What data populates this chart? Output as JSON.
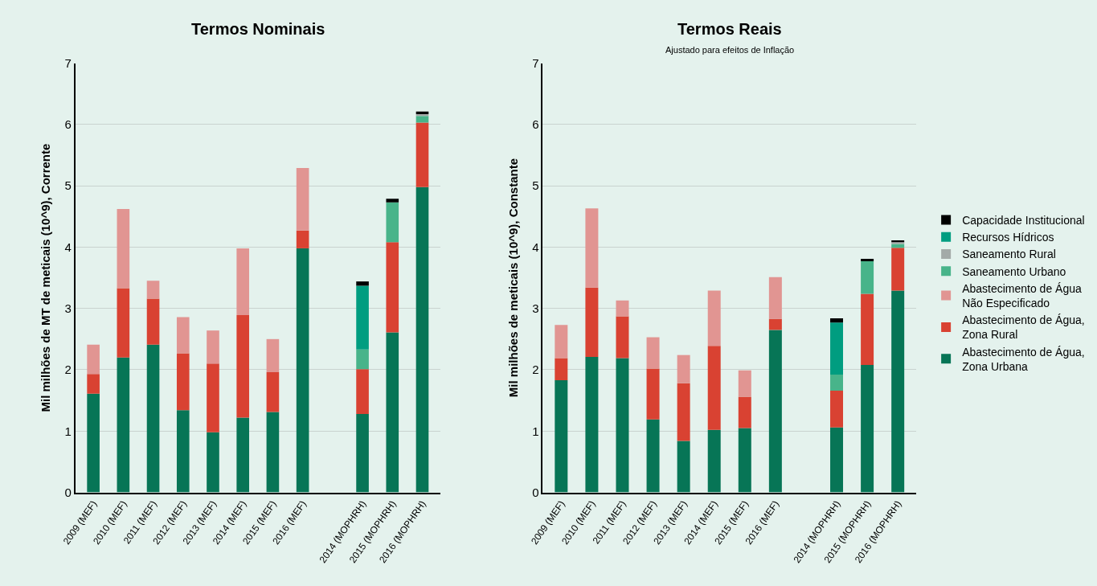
{
  "chart_data": [
    {
      "type": "bar",
      "stacked": true,
      "title": "Termos Nominais",
      "ylabel": "Mil milhões de MT de meticais (10^9), Corrente",
      "categories": [
        "2009 (MEF)",
        "2010 (MEF)",
        "2011 (MEF)",
        "2012 (MEF)",
        "2013 (MEF)",
        "2014 (MEF)",
        "2015 (MEF)",
        "2016 (MEF)",
        null,
        "2014 (MOPHRH)",
        "2015 (MOPHRH)",
        "2016 (MOPHRH)"
      ],
      "series": [
        {
          "name": "Abastecimento de Água,\nZona Urbana",
          "color": "#077556",
          "values": [
            1.61,
            2.2,
            2.41,
            1.34,
            0.98,
            1.22,
            1.31,
            3.98,
            null,
            1.28,
            2.61,
            4.98
          ]
        },
        {
          "name": "Abastecimento de Água,\nZona Rural",
          "color": "#d94232",
          "values": [
            0.32,
            1.13,
            0.75,
            0.93,
            1.12,
            1.67,
            0.65,
            0.29,
            null,
            0.73,
            1.47,
            1.05
          ]
        },
        {
          "name": "Abastecimento de Água\nNão Especificado",
          "color": "#e19592",
          "values": [
            0.48,
            1.29,
            0.29,
            0.59,
            0.54,
            1.09,
            0.54,
            1.02,
            null,
            null,
            null,
            null
          ]
        },
        {
          "name": "Saneamento Urbano",
          "color": "#48b48a",
          "values": [
            null,
            null,
            null,
            null,
            null,
            null,
            null,
            null,
            null,
            0.32,
            0.65,
            0.11
          ]
        },
        {
          "name": "Saneamento Rural",
          "color": "#a3aaa8",
          "values": [
            null,
            null,
            null,
            null,
            null,
            null,
            null,
            null,
            null,
            null,
            null,
            0.03
          ]
        },
        {
          "name": "Recursos Hídricos",
          "color": "#009d80",
          "values": [
            null,
            null,
            null,
            null,
            null,
            null,
            null,
            null,
            null,
            1.04,
            null,
            null
          ]
        },
        {
          "name": "Capacidade Institucional",
          "color": "#000000",
          "values": [
            null,
            null,
            null,
            null,
            null,
            null,
            null,
            null,
            null,
            0.07,
            0.06,
            0.04
          ]
        }
      ],
      "ylim": [
        0,
        7
      ],
      "yticks": [
        0,
        1,
        2,
        3,
        4,
        5,
        6,
        7
      ],
      "grid": "y",
      "legend": "right"
    },
    {
      "type": "bar",
      "stacked": true,
      "title": "Termos Reais",
      "subtitle": "Ajustado para efeitos de Inflação",
      "ylabel": "Mil milhões de meticais (10^9), Constante",
      "categories": [
        "2009 (MEF)",
        "2010 (MEF)",
        "2011 (MEF)",
        "2012 (MEF)",
        "2013 (MEF)",
        "2014 (MEF)",
        "2015 (MEF)",
        "2016 (MEF)",
        null,
        "2014 (MOPHRH)",
        "2015 (MOPHRH)",
        "2016 (MOPHRH)"
      ],
      "series": [
        {
          "name": "Abastecimento de Água,\nZona Urbana",
          "color": "#077556",
          "values": [
            1.83,
            2.21,
            2.19,
            1.19,
            0.84,
            1.02,
            1.05,
            2.65,
            null,
            1.06,
            2.08,
            3.29
          ]
        },
        {
          "name": "Abastecimento de Água,\nZona Rural",
          "color": "#d94232",
          "values": [
            0.36,
            1.13,
            0.68,
            0.83,
            0.94,
            1.37,
            0.51,
            0.18,
            null,
            0.6,
            1.16,
            0.7
          ]
        },
        {
          "name": "Abastecimento de Água\nNão Especificado",
          "color": "#e19592",
          "values": [
            0.54,
            1.29,
            0.26,
            0.51,
            0.46,
            0.9,
            0.43,
            0.68,
            null,
            null,
            null,
            null
          ]
        },
        {
          "name": "Saneamento Urbano",
          "color": "#48b48a",
          "values": [
            null,
            null,
            null,
            null,
            null,
            null,
            null,
            null,
            null,
            0.26,
            0.53,
            0.06
          ]
        },
        {
          "name": "Saneamento Rural",
          "color": "#a3aaa8",
          "values": [
            null,
            null,
            null,
            null,
            null,
            null,
            null,
            null,
            null,
            null,
            null,
            0.03
          ]
        },
        {
          "name": "Recursos Hídricos",
          "color": "#009d80",
          "values": [
            null,
            null,
            null,
            null,
            null,
            null,
            null,
            null,
            null,
            0.85,
            null,
            null
          ]
        },
        {
          "name": "Capacidade Institucional",
          "color": "#000000",
          "values": [
            null,
            null,
            null,
            null,
            null,
            null,
            null,
            null,
            null,
            0.07,
            0.04,
            0.03
          ]
        }
      ],
      "ylim": [
        0,
        7
      ],
      "yticks": [
        0,
        1,
        2,
        3,
        4,
        5,
        6,
        7
      ],
      "grid": "y",
      "legend": "right"
    }
  ]
}
